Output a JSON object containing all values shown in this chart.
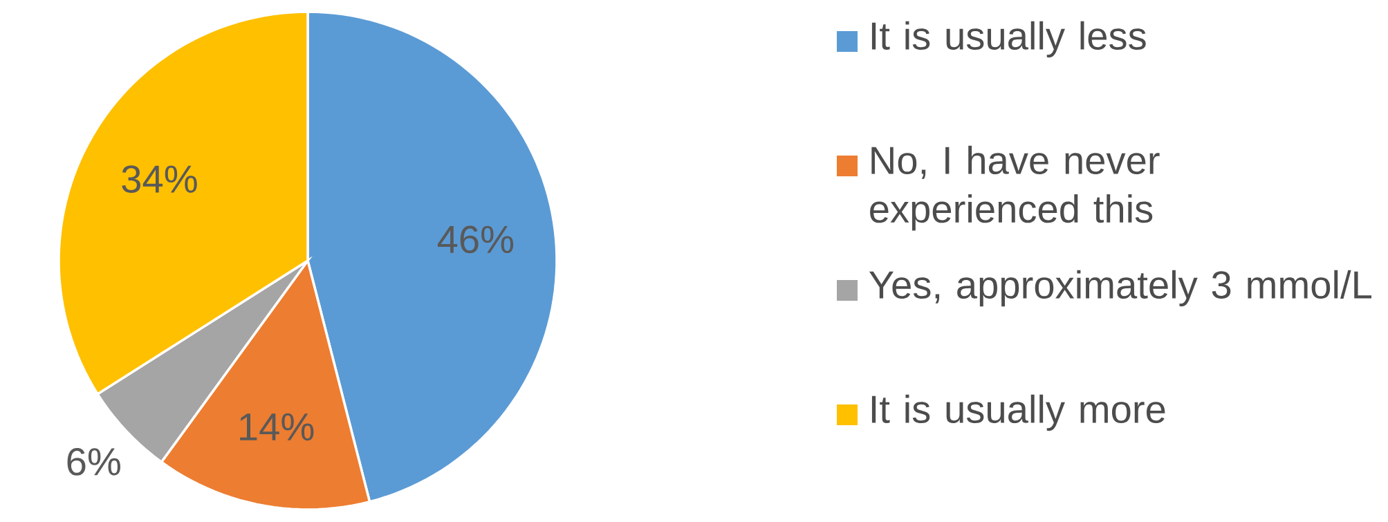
{
  "chart_data": {
    "type": "pie",
    "categories": [
      "It is usually less",
      "No, I have never experienced this",
      "Yes, approximately 3 mmol/L",
      "It is usually more"
    ],
    "values": [
      46,
      14,
      6,
      34
    ],
    "value_labels": [
      "46%",
      "14%",
      "6%",
      "34%"
    ],
    "colors": [
      "#5b9bd5",
      "#ed7d31",
      "#a5a5a5",
      "#ffc000"
    ],
    "legend": "right"
  }
}
